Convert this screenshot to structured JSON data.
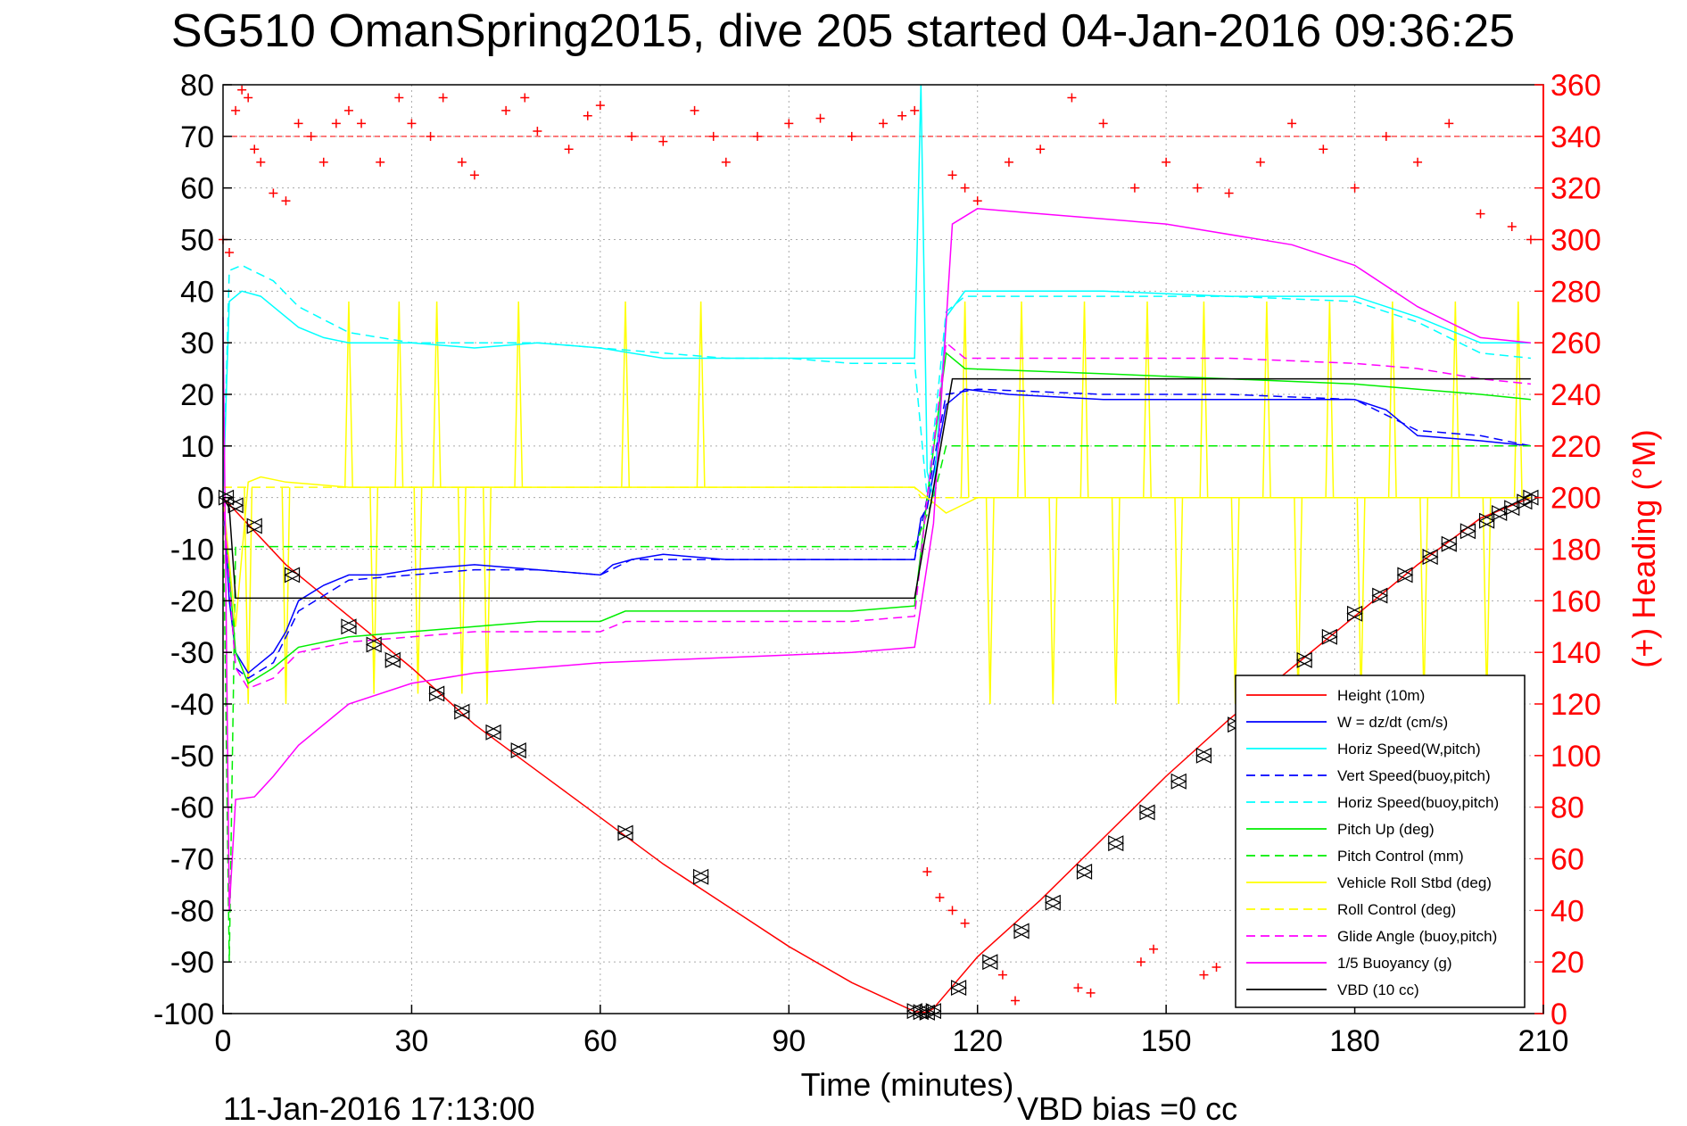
{
  "chart_data": {
    "type": "line",
    "title": "SG510 OmanSpring2015, dive 205 started 04-Jan-2016 09:36:25",
    "xlabel": "Time (minutes)",
    "ylabel_right": "(+) Heading (°M)",
    "footer_left": "11-Jan-2016 17:13:00",
    "footer_right": "VBD bias =0 cc",
    "xlim": [
      0,
      210
    ],
    "ylim_left": [
      -100,
      80
    ],
    "ylim_right": [
      0,
      360
    ],
    "x_ticks": [
      "0",
      "30",
      "60",
      "90",
      "120",
      "150",
      "180",
      "210"
    ],
    "y_ticks_left": [
      "80",
      "70",
      "60",
      "50",
      "40",
      "30",
      "20",
      "10",
      "0",
      "-10",
      "-20",
      "-30",
      "-40",
      "-50",
      "-60",
      "-70",
      "-80",
      "-90",
      "-100"
    ],
    "y_ticks_right": [
      "360",
      "340",
      "320",
      "300",
      "280",
      "260",
      "240",
      "220",
      "200",
      "180",
      "160",
      "140",
      "120",
      "100",
      "80",
      "60",
      "40",
      "20",
      "0"
    ],
    "grid": true,
    "legend_position": "bottom-right",
    "reference_line_right": 340,
    "colors": {
      "height": "#ff0000",
      "w": "#0000ff",
      "horiz_speed": "#00ffff",
      "pitch": "#00ee00",
      "roll": "#ffff00",
      "glide": "#ff00ff",
      "buoyancy": "#ff00ff",
      "vbd": "#000000",
      "heading": "#ff0000"
    },
    "series": [
      {
        "key": "height",
        "name": "Height (10m)",
        "color": "#ff0000",
        "dash": "solid",
        "axis": "left",
        "x": [
          0,
          10,
          20,
          30,
          40,
          50,
          60,
          70,
          80,
          90,
          100,
          110,
          112,
          113,
          120,
          130,
          140,
          150,
          160,
          170,
          180,
          190,
          200,
          208
        ],
        "y": [
          0,
          -13,
          -23,
          -33,
          -44,
          -53,
          -62,
          -71,
          -79,
          -87,
          -94,
          -99.6,
          -99.8,
          -99,
          -89,
          -78,
          -66,
          -54,
          -43,
          -33,
          -23,
          -13,
          -4,
          0
        ]
      },
      {
        "key": "w",
        "name": "W = dz/dt (cm/s)",
        "color": "#0000ff",
        "dash": "solid",
        "axis": "left",
        "x": [
          0,
          1,
          2,
          4,
          6,
          8,
          10,
          12,
          16,
          20,
          25,
          30,
          40,
          50,
          60,
          62,
          65,
          70,
          80,
          90,
          100,
          110,
          111,
          112,
          115,
          118,
          125,
          140,
          160,
          180,
          185,
          190,
          200,
          208
        ],
        "y": [
          0,
          -20,
          -30,
          -34,
          -32,
          -30,
          -26,
          -20,
          -17,
          -15,
          -15,
          -14,
          -13,
          -14,
          -15,
          -13,
          -12,
          -11,
          -12,
          -12,
          -12,
          -12,
          -4,
          -2,
          18,
          21,
          20,
          19,
          19,
          19,
          17,
          12,
          11,
          10
        ]
      },
      {
        "key": "horiz_wp",
        "name": "Horiz Speed(W,pitch)",
        "color": "#00ffff",
        "dash": "solid",
        "axis": "left",
        "x": [
          0,
          1,
          3,
          6,
          8,
          12,
          16,
          20,
          30,
          40,
          50,
          60,
          70,
          80,
          90,
          100,
          110,
          111,
          112,
          113,
          115,
          118,
          120,
          140,
          160,
          180,
          190,
          200,
          208
        ],
        "y": [
          0,
          38,
          40,
          39,
          37,
          33,
          31,
          30,
          30,
          29,
          30,
          29,
          27,
          27,
          27,
          27,
          27,
          80,
          5,
          0,
          35,
          40,
          40,
          40,
          39,
          39,
          35,
          30,
          30
        ]
      },
      {
        "key": "vert_bp",
        "name": "Vert Speed(buoy,pitch)",
        "color": "#0000ff",
        "dash": "dashed",
        "axis": "left",
        "x": [
          0,
          2,
          4,
          8,
          12,
          20,
          30,
          40,
          50,
          60,
          65,
          80,
          100,
          110,
          112,
          115,
          120,
          140,
          160,
          180,
          190,
          200,
          208
        ],
        "y": [
          0,
          -33,
          -35,
          -32,
          -22,
          -16,
          -15,
          -14,
          -14,
          -15,
          -12,
          -12,
          -12,
          -12,
          0,
          20,
          21,
          20,
          20,
          19,
          13,
          12,
          10
        ]
      },
      {
        "key": "horiz_bp",
        "name": "Horiz Speed(buoy,pitch)",
        "color": "#00ffff",
        "dash": "dashed",
        "axis": "left",
        "x": [
          0,
          1,
          3,
          8,
          12,
          20,
          30,
          40,
          50,
          60,
          70,
          80,
          90,
          100,
          110,
          112,
          115,
          118,
          140,
          160,
          180,
          190,
          200,
          208
        ],
        "y": [
          0,
          44,
          45,
          42,
          37,
          32,
          30,
          30,
          30,
          29,
          28,
          27,
          27,
          26,
          26,
          0,
          36,
          39,
          39,
          39,
          38,
          34,
          28,
          27
        ]
      },
      {
        "key": "pitch_up",
        "name": "Pitch Up (deg)",
        "color": "#00ee00",
        "dash": "solid",
        "axis": "left",
        "x": [
          0,
          2,
          4,
          8,
          12,
          20,
          30,
          40,
          50,
          60,
          64,
          80,
          90,
          100,
          110,
          112,
          115,
          118,
          140,
          160,
          180,
          190,
          200,
          208
        ],
        "y": [
          0,
          -30,
          -36,
          -33,
          -29,
          -27,
          -26,
          -25,
          -24,
          -24,
          -22,
          -22,
          -22,
          -22,
          -21,
          0,
          28,
          25,
          24,
          23,
          22,
          21,
          20,
          19
        ]
      },
      {
        "key": "pitch_ctl",
        "name": "Pitch Control (mm)",
        "color": "#00ee00",
        "dash": "dashed",
        "axis": "left",
        "x": [
          0,
          1,
          2,
          110,
          113,
          115,
          118,
          208
        ],
        "y": [
          0,
          -90,
          -9.5,
          -9.5,
          0,
          10,
          10,
          10
        ]
      },
      {
        "key": "roll",
        "name": "Vehicle Roll Stbd (deg)",
        "color": "#ffff00",
        "dash": "solid",
        "axis": "left",
        "x": [
          0,
          2,
          4,
          6,
          10,
          20,
          40,
          60,
          80,
          100,
          110,
          112,
          115,
          120,
          140,
          160,
          180,
          200,
          208
        ],
        "y": [
          0,
          -25,
          3,
          4,
          3,
          2,
          2,
          2,
          2,
          2,
          2,
          0,
          -3,
          0,
          0,
          0,
          0,
          0,
          0
        ]
      },
      {
        "key": "roll_ctl",
        "name": "Roll Control (deg)",
        "color": "#ffff00",
        "dash": "dashed",
        "axis": "left",
        "x": [
          0,
          110,
          111,
          208
        ],
        "y": [
          2,
          2,
          0,
          0
        ]
      },
      {
        "key": "glide",
        "name": "Glide Angle (buoy,pitch)",
        "color": "#ff00ff",
        "dash": "dashed",
        "axis": "left",
        "x": [
          0,
          2,
          4,
          8,
          12,
          20,
          30,
          40,
          50,
          60,
          64,
          80,
          100,
          110,
          112,
          115,
          118,
          140,
          160,
          180,
          190,
          200,
          208
        ],
        "y": [
          0,
          -33,
          -37,
          -35,
          -30,
          -28,
          -27,
          -26,
          -26,
          -26,
          -24,
          -24,
          -24,
          -23,
          0,
          30,
          27,
          27,
          27,
          26,
          25,
          23,
          22
        ]
      },
      {
        "key": "buoyancy",
        "name": "1/5 Buoyancy (g)",
        "color": "#ff00ff",
        "dash": "solid",
        "axis": "left",
        "x": [
          0,
          1,
          2,
          5,
          8,
          12,
          20,
          30,
          40,
          60,
          80,
          100,
          110,
          113,
          116,
          120,
          130,
          150,
          170,
          180,
          190,
          200,
          208
        ],
        "y": [
          35,
          -80,
          -58.5,
          -58,
          -54,
          -48,
          -40,
          -36,
          -34,
          -32,
          -31,
          -30,
          -29,
          -5,
          53,
          56,
          55,
          53,
          49,
          45,
          37,
          31,
          30
        ]
      },
      {
        "key": "vbd",
        "name": "VBD (10 cc)",
        "color": "#000000",
        "dash": "solid",
        "axis": "left",
        "x": [
          0,
          1,
          2,
          110,
          116,
          208
        ],
        "y": [
          0,
          -2,
          -19.5,
          -19.5,
          23,
          23
        ]
      },
      {
        "key": "heading",
        "name": "(+) Heading (°M)",
        "color": "#ff0000",
        "dash": "markers-plus",
        "axis": "right",
        "x": [
          0,
          1,
          2,
          3,
          4,
          5,
          6,
          8,
          10,
          12,
          14,
          16,
          18,
          20,
          22,
          25,
          28,
          30,
          33,
          35,
          38,
          40,
          45,
          48,
          50,
          55,
          58,
          60,
          65,
          70,
          75,
          78,
          80,
          85,
          90,
          95,
          100,
          105,
          108,
          110,
          116,
          118,
          120,
          125,
          130,
          135,
          140,
          145,
          150,
          155,
          160,
          165,
          170,
          175,
          180,
          185,
          190,
          195,
          200,
          205,
          208,
          112,
          114,
          116,
          118,
          124,
          126,
          136,
          138,
          146,
          148,
          156,
          158
        ],
        "y": [
          300,
          295,
          350,
          358,
          355,
          335,
          330,
          318,
          315,
          345,
          340,
          330,
          345,
          350,
          345,
          330,
          355,
          345,
          340,
          355,
          330,
          325,
          350,
          355,
          342,
          335,
          348,
          352,
          340,
          338,
          350,
          340,
          330,
          340,
          345,
          347,
          340,
          345,
          348,
          350,
          325,
          320,
          315,
          330,
          335,
          355,
          345,
          320,
          330,
          320,
          318,
          330,
          345,
          335,
          320,
          340,
          330,
          345,
          310,
          305,
          300,
          55,
          45,
          40,
          35,
          15,
          5,
          10,
          8,
          20,
          25,
          15,
          18
        ]
      }
    ],
    "marker_points": {
      "x": [
        0.5,
        2,
        5,
        11,
        20,
        24,
        27,
        34,
        38,
        43,
        47,
        64,
        76,
        110,
        111,
        112,
        113,
        117,
        122,
        127,
        132,
        137,
        142,
        147,
        152,
        156,
        161,
        166,
        172,
        176,
        180,
        184,
        188,
        192,
        195,
        198,
        201,
        203,
        205,
        207,
        208
      ],
      "y": [
        0,
        -1.5,
        -5.5,
        -15,
        -25,
        -28.5,
        -31.5,
        -38,
        -41.5,
        -45.5,
        -49,
        -65,
        -73.5,
        -99.5,
        -99.7,
        -99.8,
        -99.5,
        -95,
        -90,
        -84,
        -78.5,
        -72.5,
        -67,
        -61,
        -55,
        -50,
        -44,
        -38,
        -31.5,
        -27,
        -22.5,
        -19,
        -15,
        -11.5,
        -9,
        -6.5,
        -4.5,
        -3,
        -2,
        -0.8,
        0
      ]
    },
    "roll_spikes": {
      "x": [
        4,
        10,
        20,
        24,
        28,
        31,
        34,
        38,
        42,
        47,
        64,
        76,
        118,
        122,
        127,
        132,
        137,
        142,
        147,
        152,
        156,
        161,
        166,
        171,
        176,
        181,
        186,
        191,
        196,
        201,
        206
      ],
      "y": [
        -40,
        -40,
        38,
        -38,
        38,
        -38,
        38,
        -38,
        -40,
        38,
        38,
        38,
        38,
        -40,
        38,
        -40,
        38,
        -40,
        38,
        -40,
        38,
        -40,
        38,
        -40,
        38,
        -40,
        38,
        -40,
        38,
        -40,
        38
      ]
    }
  }
}
